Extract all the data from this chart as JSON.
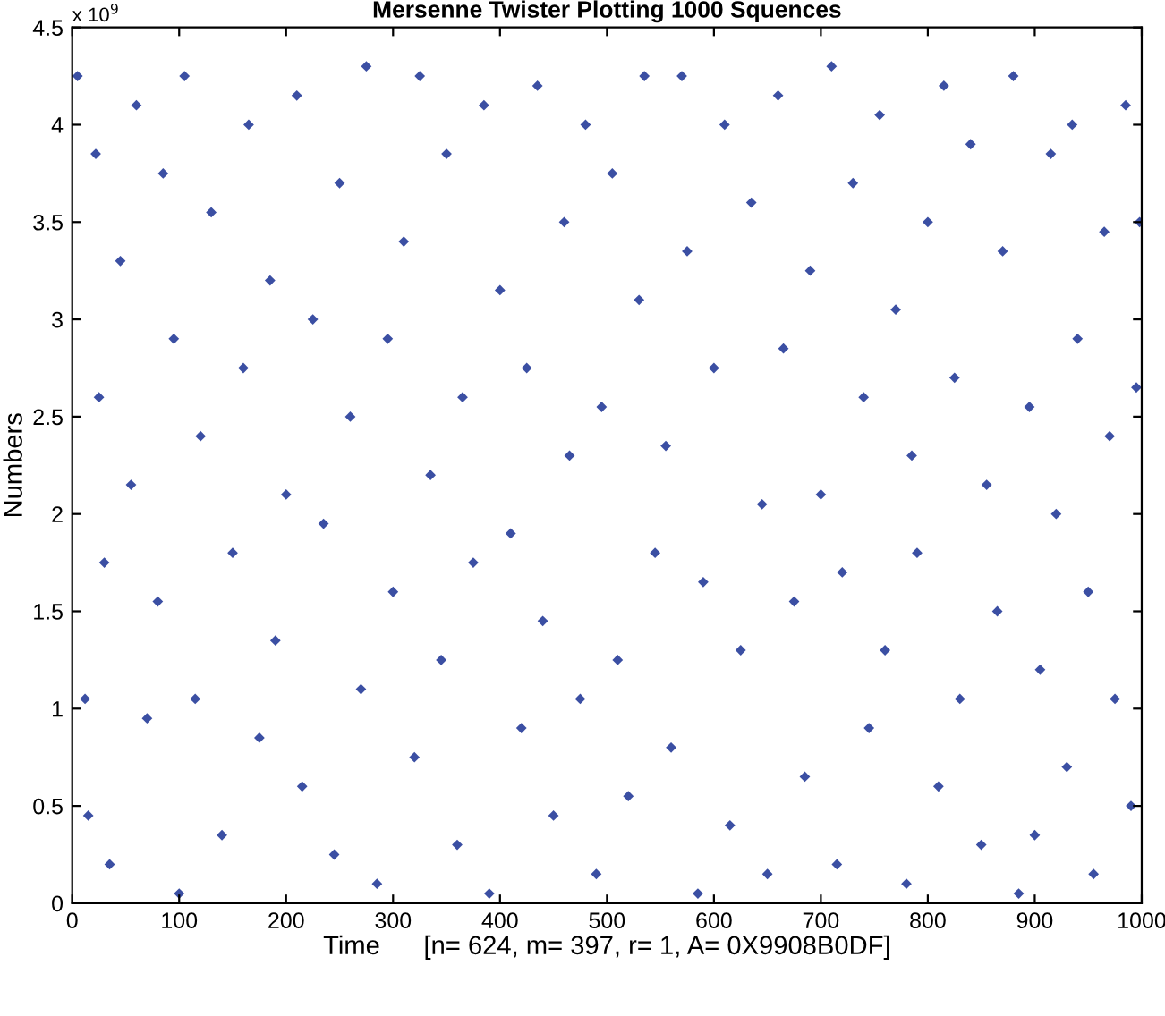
{
  "chart_data": {
    "type": "scatter",
    "title": "Mersenne Twister Plotting 1000 Squences",
    "xlabel": "Time      [n= 624, m= 397, r= 1, A= 0X9908B0DF]",
    "ylabel": "Numbers",
    "annotations": [
      "x 10$^{9}$"
    ],
    "xlim": [
      0,
      1000
    ],
    "xticks": [
      0,
      100,
      200,
      300,
      400,
      500,
      600,
      700,
      800,
      900,
      1000
    ],
    "ylim": [
      0,
      4.5
    ],
    "yticks": [
      0,
      0.5,
      1,
      1.5,
      2,
      2.5,
      3,
      3.5,
      4,
      4.5
    ],
    "grid": false,
    "marker": "diamond",
    "series": [
      {
        "color": "#3b4fa3",
        "x": [
          5,
          12,
          15,
          22,
          25,
          30,
          35,
          45,
          55,
          60,
          70,
          80,
          85,
          95,
          100,
          105,
          115,
          120,
          130,
          140,
          150,
          160,
          165,
          175,
          185,
          190,
          200,
          210,
          215,
          225,
          235,
          245,
          250,
          260,
          270,
          275,
          285,
          295,
          300,
          310,
          320,
          325,
          335,
          345,
          350,
          360,
          365,
          375,
          385,
          390,
          400,
          410,
          420,
          425,
          435,
          440,
          450,
          460,
          465,
          475,
          480,
          490,
          495,
          505,
          510,
          520,
          530,
          535,
          545,
          555,
          560,
          570,
          575,
          585,
          590,
          600,
          610,
          615,
          625,
          635,
          645,
          650,
          660,
          665,
          675,
          685,
          690,
          700,
          710,
          715,
          720,
          730,
          740,
          745,
          755,
          760,
          770,
          780,
          785,
          790,
          800,
          810,
          815,
          825,
          830,
          840,
          850,
          855,
          865,
          870,
          880,
          885,
          895,
          900,
          905,
          915,
          920,
          930,
          935,
          940,
          950,
          955,
          965,
          970,
          975,
          985,
          990,
          995,
          998
        ],
        "values": [
          4.25,
          1.05,
          0.45,
          3.85,
          2.6,
          1.75,
          0.2,
          3.3,
          2.15,
          4.1,
          0.95,
          1.55,
          3.75,
          2.9,
          0.05,
          4.25,
          1.05,
          2.4,
          3.55,
          0.35,
          1.8,
          2.75,
          4.0,
          0.85,
          3.2,
          1.35,
          2.1,
          4.15,
          0.6,
          3.0,
          1.95,
          0.25,
          3.7,
          2.5,
          1.1,
          4.3,
          0.1,
          2.9,
          1.6,
          3.4,
          0.75,
          4.25,
          2.2,
          1.25,
          3.85,
          0.3,
          2.6,
          1.75,
          4.1,
          0.05,
          3.15,
          1.9,
          0.9,
          2.75,
          4.2,
          1.45,
          0.45,
          3.5,
          2.3,
          1.05,
          4.0,
          0.15,
          2.55,
          3.75,
          1.25,
          0.55,
          3.1,
          4.25,
          1.8,
          2.35,
          0.8,
          4.25,
          3.35,
          0.05,
          1.65,
          2.75,
          4.0,
          0.4,
          1.3,
          3.6,
          2.05,
          0.15,
          4.15,
          2.85,
          1.55,
          0.65,
          3.25,
          2.1,
          4.3,
          0.2,
          1.7,
          3.7,
          2.6,
          0.9,
          4.05,
          1.3,
          3.05,
          0.1,
          2.3,
          1.8,
          3.5,
          0.6,
          4.2,
          2.7,
          1.05,
          3.9,
          0.3,
          2.15,
          1.5,
          3.35,
          4.25,
          0.05,
          2.55,
          0.35,
          1.2,
          3.85,
          2.0,
          0.7,
          4.0,
          2.9,
          1.6,
          0.15,
          3.45,
          2.4,
          1.05,
          4.1,
          0.5,
          2.65,
          3.5
        ]
      }
    ]
  }
}
